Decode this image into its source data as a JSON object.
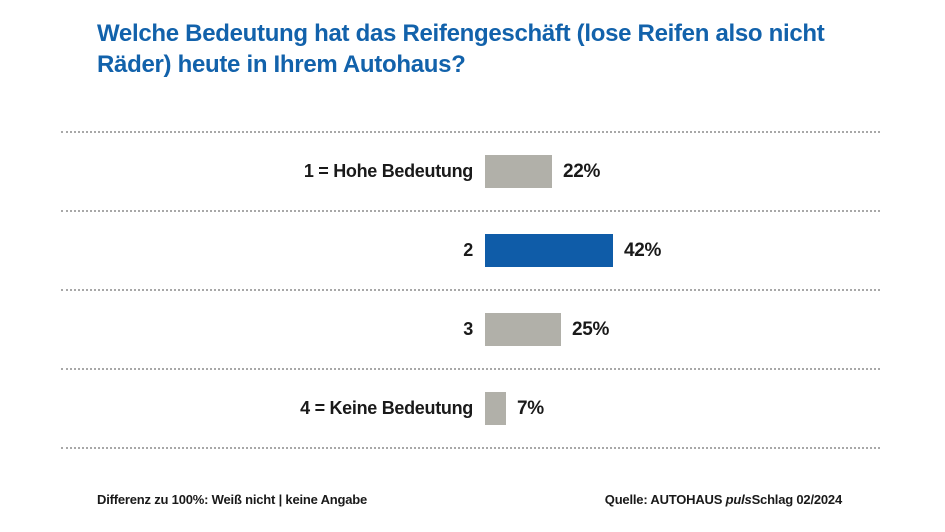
{
  "chart_data": {
    "type": "bar",
    "orientation": "horizontal",
    "title": "Welche Bedeutung hat das Reifengeschäft (lose Reifen also nicht Räder) heute in Ihrem Autohaus?",
    "categories": [
      "1 = Hohe Bedeutung",
      "2",
      "3",
      "4 = Keine Bedeutung"
    ],
    "values": [
      22,
      42,
      25,
      7
    ],
    "value_labels": [
      "22%",
      "42%",
      "25%",
      "7%"
    ],
    "value_suffix": "%",
    "highlight_index": 1,
    "colors": {
      "bar_default": "#b1b0a9",
      "bar_highlight": "#0f5ca8",
      "title_text": "#1262ab",
      "label_text": "#1a1a1a",
      "separator": "#a8a8a8"
    },
    "gridlines": "dotted-horizontal-separators",
    "legend": "none",
    "xlim": [
      0,
      100
    ]
  },
  "footer": {
    "left_note": "Differenz zu 100%: Weiß nicht | keine Angabe",
    "source_prefix": "Quelle: AUTOHAUS ",
    "source_italic": "puls",
    "source_suffix": "Schlag 02/2024"
  }
}
